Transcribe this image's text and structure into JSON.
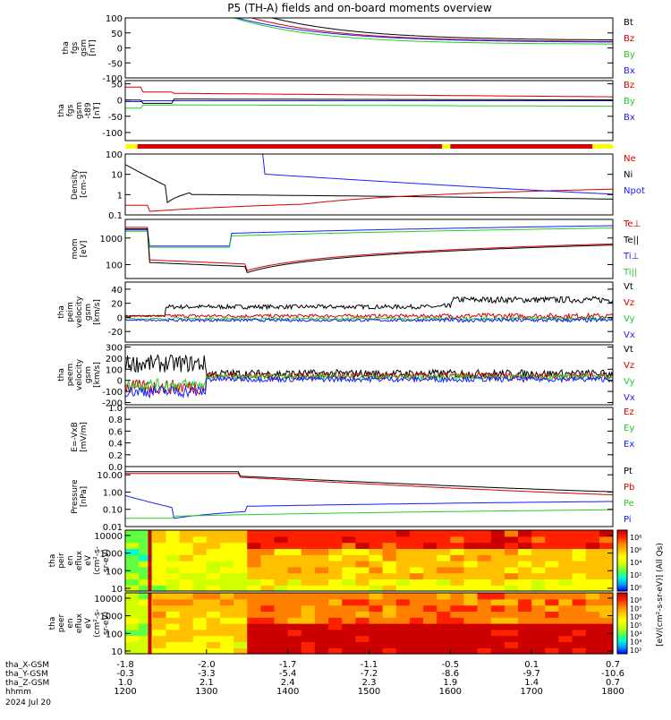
{
  "title": "P5 (TH-A) fields and on-board moments overview",
  "colors": {
    "black": "#000000",
    "red": "#d40000",
    "green": "#22cc22",
    "blue": "#1a1aff",
    "yellow": "#ffff00",
    "axis": "#000000"
  },
  "chart_data": [
    {
      "type": "line",
      "name": "fgs",
      "ylabel_lines": [
        "tha",
        "fgs",
        "gsm",
        "[nT]"
      ],
      "ylim": [
        -100,
        100
      ],
      "yticks": [
        "100",
        "50",
        "0",
        "-50",
        "-100"
      ],
      "legend": [
        {
          "label": "Bt",
          "color": "#000000"
        },
        {
          "label": "Bz",
          "color": "#d40000"
        },
        {
          "label": "By",
          "color": "#22cc22"
        },
        {
          "label": "Bx",
          "color": "#1a1aff"
        }
      ]
    },
    {
      "type": "line",
      "name": "fgs-dsl",
      "ylabel_lines": [
        "tha",
        "fgs",
        "gsm",
        "-t89",
        "[nT]"
      ],
      "ylim": [
        -125,
        60
      ],
      "yticks": [
        "50",
        "0",
        "-50",
        "-100"
      ],
      "legend": [
        {
          "label": "Bz",
          "color": "#d40000"
        },
        {
          "label": "By",
          "color": "#22cc22"
        },
        {
          "label": "Bx",
          "color": "#1a1aff"
        }
      ]
    },
    {
      "type": "line",
      "name": "density",
      "ylabel_lines": [
        "Density",
        "[cm-3]"
      ],
      "yscale": "log",
      "ylim": [
        0.1,
        100
      ],
      "yticks": [
        "100",
        "10",
        "1",
        "0.1"
      ],
      "legend": [
        {
          "label": "Ne",
          "color": "#d40000"
        },
        {
          "label": "Ni",
          "color": "#000000"
        },
        {
          "label": "Npot",
          "color": "#1a1aff"
        }
      ]
    },
    {
      "type": "line",
      "name": "temperature",
      "ylabel_lines": [
        "mom",
        "[eV]"
      ],
      "yscale": "log",
      "ylim": [
        30,
        5000
      ],
      "yticks": [
        "1000",
        "100"
      ],
      "legend": [
        {
          "label": "Te⊥",
          "color": "#d40000"
        },
        {
          "label": "Te||",
          "color": "#000000"
        },
        {
          "label": "Ti⊥",
          "color": "#1a1aff"
        },
        {
          "label": "Ti||",
          "color": "#22cc22"
        }
      ]
    },
    {
      "type": "line",
      "name": "peim-velocity",
      "ylabel_lines": [
        "tha",
        "peim",
        "velocity",
        "gsm",
        "[km/s]"
      ],
      "ylim": [
        -35,
        50
      ],
      "yticks": [
        "40",
        "20",
        "0",
        "-20"
      ],
      "legend": [
        {
          "label": "Vt",
          "color": "#000000"
        },
        {
          "label": "Vz",
          "color": "#d40000"
        },
        {
          "label": "Vy",
          "color": "#22cc22"
        },
        {
          "label": "Vx",
          "color": "#1a1aff"
        }
      ]
    },
    {
      "type": "line",
      "name": "peem-velocity",
      "ylabel_lines": [
        "tha",
        "peem",
        "velocity",
        "gsm",
        "[km/s]"
      ],
      "ylim": [
        -220,
        320
      ],
      "yticks": [
        "300",
        "200",
        "100",
        "0",
        "-100",
        "-200"
      ],
      "legend": [
        {
          "label": "Vt",
          "color": "#000000"
        },
        {
          "label": "Vz",
          "color": "#d40000"
        },
        {
          "label": "Vy",
          "color": "#22cc22"
        },
        {
          "label": "Vx",
          "color": "#1a1aff"
        }
      ]
    },
    {
      "type": "line",
      "name": "efield",
      "ylabel_lines": [
        "E=-VxB",
        "[mV/m]"
      ],
      "ylim": [
        0,
        1
      ],
      "yticks": [
        "1.0",
        "0.8",
        "0.6",
        "0.4",
        "0.2",
        "0.0"
      ],
      "legend": [
        {
          "label": "Ez",
          "color": "#d40000"
        },
        {
          "label": "Ey",
          "color": "#22cc22"
        },
        {
          "label": "Ex",
          "color": "#1a1aff"
        }
      ]
    },
    {
      "type": "line",
      "name": "pressure",
      "ylabel_lines": [
        "Pressure",
        "[nPa]"
      ],
      "yscale": "log",
      "ylim": [
        0.01,
        30
      ],
      "yticks": [
        "10.00",
        "1.00",
        "0.10",
        "0.01"
      ],
      "legend": [
        {
          "label": "Pt",
          "color": "#000000"
        },
        {
          "label": "Pb",
          "color": "#d40000"
        },
        {
          "label": "Pe",
          "color": "#22cc22"
        },
        {
          "label": "Pi",
          "color": "#1a1aff"
        }
      ]
    },
    {
      "type": "heatmap",
      "name": "peir-spec",
      "ylabel_lines": [
        "tha",
        "peir",
        "en",
        "eflux",
        "eV",
        "(cm²-s-",
        "sr-eV)"
      ],
      "yscale": "log",
      "ylim": [
        7,
        20000
      ],
      "yticks": [
        "10000",
        "1000",
        "100",
        "10"
      ]
    },
    {
      "type": "heatmap",
      "name": "peer-spec",
      "ylabel_lines": [
        "tha",
        "peer",
        "en",
        "eflux",
        "eV",
        "(cm²-s-",
        "sr-eV)"
      ],
      "yscale": "log",
      "ylim": [
        7,
        20000
      ],
      "yticks": [
        "10000",
        "1000",
        "100",
        "10"
      ]
    }
  ],
  "colorbars": [
    {
      "ticks": [
        "10⁸",
        "10⁶",
        "10⁴",
        "10²",
        "10⁰"
      ],
      "label": "[eV/(cm²-s-sr-eV)] (All Qs)"
    },
    {
      "ticks": [
        "10⁸",
        "10⁷",
        "10⁶",
        "10⁵",
        "10⁴",
        "10³",
        "10²"
      ],
      "label": "[eV/(cm²-s-sr-eV)]"
    }
  ],
  "xaxis": {
    "rows": [
      {
        "label": "tha_X-GSM",
        "values": [
          "-1.8",
          "-2.0",
          "-1.7",
          "-1.1",
          "-0.5",
          "0.1",
          "0.7"
        ]
      },
      {
        "label": "tha_Y-GSM",
        "values": [
          "-0.3",
          "-3.3",
          "-5.4",
          "-7.2",
          "-8.6",
          "-9.7",
          "-10.6"
        ]
      },
      {
        "label": "tha_Z-GSM",
        "values": [
          "1.0",
          "2.1",
          "2.4",
          "2.3",
          "1.9",
          "1.4",
          "0.7"
        ]
      },
      {
        "label": "hhmm",
        "values": [
          "1200",
          "1300",
          "1400",
          "1500",
          "1600",
          "1700",
          "1800"
        ]
      }
    ],
    "date": "2024 Jul 20"
  }
}
